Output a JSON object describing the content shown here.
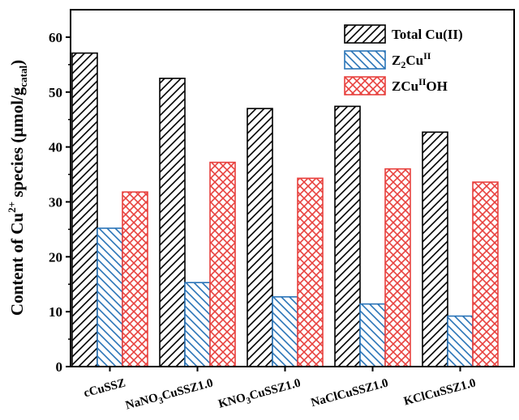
{
  "chart_data": {
    "type": "bar",
    "ylabel": "Content of Cu2+ species (μmol/gcatal)",
    "ylabel_parts": {
      "prefix": "Content of Cu",
      "sup": "2+",
      "middle": " species (μmol/g",
      "sub": "catal",
      "suffix": ")"
    },
    "xlabel": "",
    "ylim": [
      0,
      65
    ],
    "yticks": [
      0,
      10,
      20,
      30,
      40,
      50,
      60
    ],
    "categories": [
      "cCuSSZ",
      "NaNO3CuSSZ1.0",
      "KNO3CuSSZ1.0",
      "NaClCuSSZ1.0",
      "KClCuSSZ1.0"
    ],
    "category_parts": [
      {
        "a": "cCuSSZ",
        "sub": "",
        "b": ""
      },
      {
        "a": "NaNO",
        "sub": "3",
        "b": "CuSSZ1.0"
      },
      {
        "a": "KNO",
        "sub": "3",
        "b": "CuSSZ1.0"
      },
      {
        "a": "NaClCuSSZ1.0",
        "sub": "",
        "b": ""
      },
      {
        "a": "KClCuSSZ1.0",
        "sub": "",
        "b": ""
      }
    ],
    "series": [
      {
        "name": "Total Cu(II)",
        "values": [
          57.1,
          52.5,
          47.0,
          47.4,
          42.7
        ],
        "color": "#000000",
        "pattern": "diag-up"
      },
      {
        "name": "Z2CuII",
        "values": [
          25.2,
          15.3,
          12.7,
          11.4,
          9.2
        ],
        "color": "#2a74b8",
        "pattern": "diag-down"
      },
      {
        "name": "ZCuIIOH",
        "values": [
          31.8,
          37.2,
          34.3,
          36.0,
          33.6
        ],
        "color": "#e8413e",
        "pattern": "cross"
      }
    ],
    "legend": {
      "placement": "top-right",
      "entries": [
        {
          "parts": [
            {
              "t": "Total Cu(II)",
              "s": ""
            }
          ]
        },
        {
          "parts": [
            {
              "t": "Z",
              "s": ""
            },
            {
              "t": "2",
              "s": "sub"
            },
            {
              "t": "Cu",
              "s": ""
            },
            {
              "t": "II",
              "s": "sup"
            }
          ]
        },
        {
          "parts": [
            {
              "t": "ZCu",
              "s": ""
            },
            {
              "t": "II",
              "s": "sup"
            },
            {
              "t": "OH",
              "s": ""
            }
          ]
        }
      ]
    },
    "grid": false
  }
}
